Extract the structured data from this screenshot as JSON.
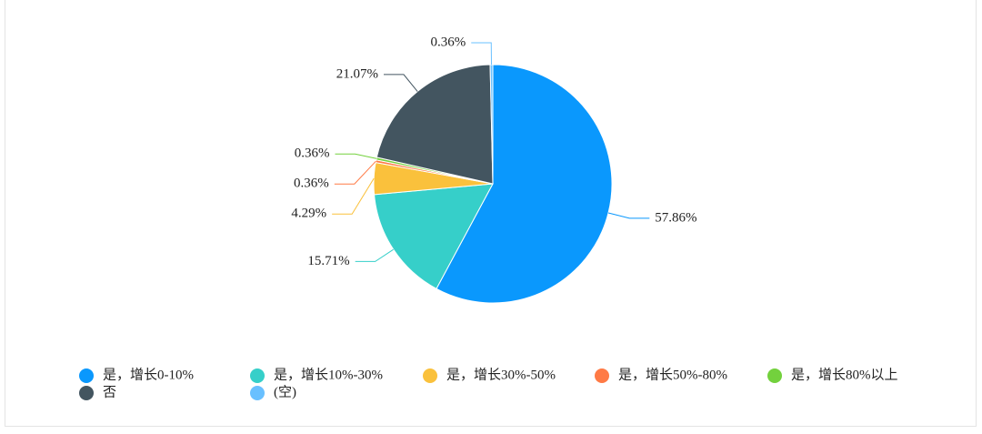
{
  "chart_data": {
    "type": "pie",
    "categories": [
      "是，增长0-10%",
      "是，增长10%-30%",
      "是，增长30%-50%",
      "是，增长50%-80%",
      "是，增长80%以上",
      "否",
      "(空)"
    ],
    "values": [
      57.86,
      15.71,
      4.29,
      0.36,
      0.36,
      21.07,
      0.36
    ],
    "value_labels": [
      "57.86%",
      "15.71%",
      "4.29%",
      "0.36%",
      "0.36%",
      "21.07%",
      "0.36%"
    ],
    "colors": [
      "#0a98fd",
      "#36cfc9",
      "#fac13c",
      "#ff7a45",
      "#73d13d",
      "#435560",
      "#69c0ff"
    ]
  }
}
